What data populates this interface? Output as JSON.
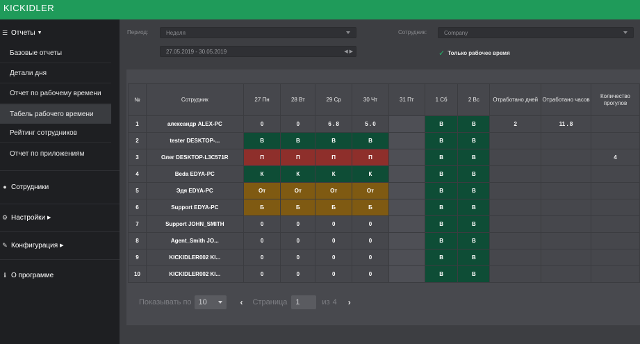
{
  "app": {
    "logo": "KICKIDLER"
  },
  "sidebar": {
    "reports_label": "Отчеты",
    "items": [
      {
        "label": "Базовые отчеты"
      },
      {
        "label": "Детали дня"
      },
      {
        "label": "Отчет по рабочему времени"
      },
      {
        "label": "Табель рабочего времени"
      },
      {
        "label": "Рейтинг сотрудников"
      },
      {
        "label": "Отчет по приложениям"
      }
    ],
    "employees_label": "Сотрудники",
    "settings_label": "Настройки",
    "config_label": "Конфигурация",
    "about_label": "О программе"
  },
  "filters": {
    "period_label": "Период:",
    "period_value": "Неделя",
    "daterange": "27.05.2019 - 30.05.2019",
    "employee_label": "Сотрудник:",
    "employee_value": "Company",
    "only_worktime_label": "Только рабочее время"
  },
  "table": {
    "headers": [
      "№",
      "Сотрудник",
      "27 Пн",
      "28 Вт",
      "29 Ср",
      "30 Чт",
      "31 Пт",
      "1 Сб",
      "2 Вс",
      "Отработано дней",
      "Отработано часов",
      "Количество прогулов"
    ],
    "rows": [
      {
        "n": "1",
        "name": "александр ALEX-PC",
        "days": [
          "0",
          "0",
          "6 . 8",
          "5 . 0",
          "",
          "В",
          "В"
        ],
        "worked_days": "2",
        "worked_hours": "11 . 8",
        "absences": ""
      },
      {
        "n": "2",
        "name": "tester DESKTOP-...",
        "days": [
          "В",
          "В",
          "В",
          "В",
          "",
          "В",
          "В"
        ],
        "worked_days": "",
        "worked_hours": "",
        "absences": ""
      },
      {
        "n": "3",
        "name": "Олег DESKTOP-L3C571R",
        "days": [
          "П",
          "П",
          "П",
          "П",
          "",
          "В",
          "В"
        ],
        "worked_days": "",
        "worked_hours": "",
        "absences": "4"
      },
      {
        "n": "4",
        "name": "Beda EDYA-PC",
        "days": [
          "К",
          "К",
          "К",
          "К",
          "",
          "В",
          "В"
        ],
        "worked_days": "",
        "worked_hours": "",
        "absences": ""
      },
      {
        "n": "5",
        "name": "Эдя EDYA-PC",
        "days": [
          "От",
          "От",
          "От",
          "От",
          "",
          "В",
          "В"
        ],
        "worked_days": "",
        "worked_hours": "",
        "absences": ""
      },
      {
        "n": "6",
        "name": "Support EDYA-PC",
        "days": [
          "Б",
          "Б",
          "Б",
          "Б",
          "",
          "В",
          "В"
        ],
        "worked_days": "",
        "worked_hours": "",
        "absences": ""
      },
      {
        "n": "7",
        "name": "Support JOHN_SMITH",
        "days": [
          "0",
          "0",
          "0",
          "0",
          "",
          "В",
          "В"
        ],
        "worked_days": "",
        "worked_hours": "",
        "absences": ""
      },
      {
        "n": "8",
        "name": "Agent_Smith JO...",
        "days": [
          "0",
          "0",
          "0",
          "0",
          "",
          "В",
          "В"
        ],
        "worked_days": "",
        "worked_hours": "",
        "absences": ""
      },
      {
        "n": "9",
        "name": "KICKIDLER002 KI...",
        "days": [
          "0",
          "0",
          "0",
          "0",
          "",
          "В",
          "В"
        ],
        "worked_days": "",
        "worked_hours": "",
        "absences": ""
      },
      {
        "n": "10",
        "name": "KICKIDLER002 KI...",
        "days": [
          "0",
          "0",
          "0",
          "0",
          "",
          "В",
          "В"
        ],
        "worked_days": "",
        "worked_hours": "",
        "absences": ""
      }
    ]
  },
  "pager": {
    "show_label": "Показывать по",
    "page_size": "10",
    "page_label": "Страница",
    "page_value": "1",
    "of_label": "из",
    "total_pages": "4",
    "prev": "‹",
    "next": "›"
  },
  "colors": {
    "topbar": "#1f9b5a",
    "weekend": "#0e4d36",
    "absent": "#8e2f2b",
    "vacation": "#7f5a12",
    "sick": "#0e4d36"
  }
}
